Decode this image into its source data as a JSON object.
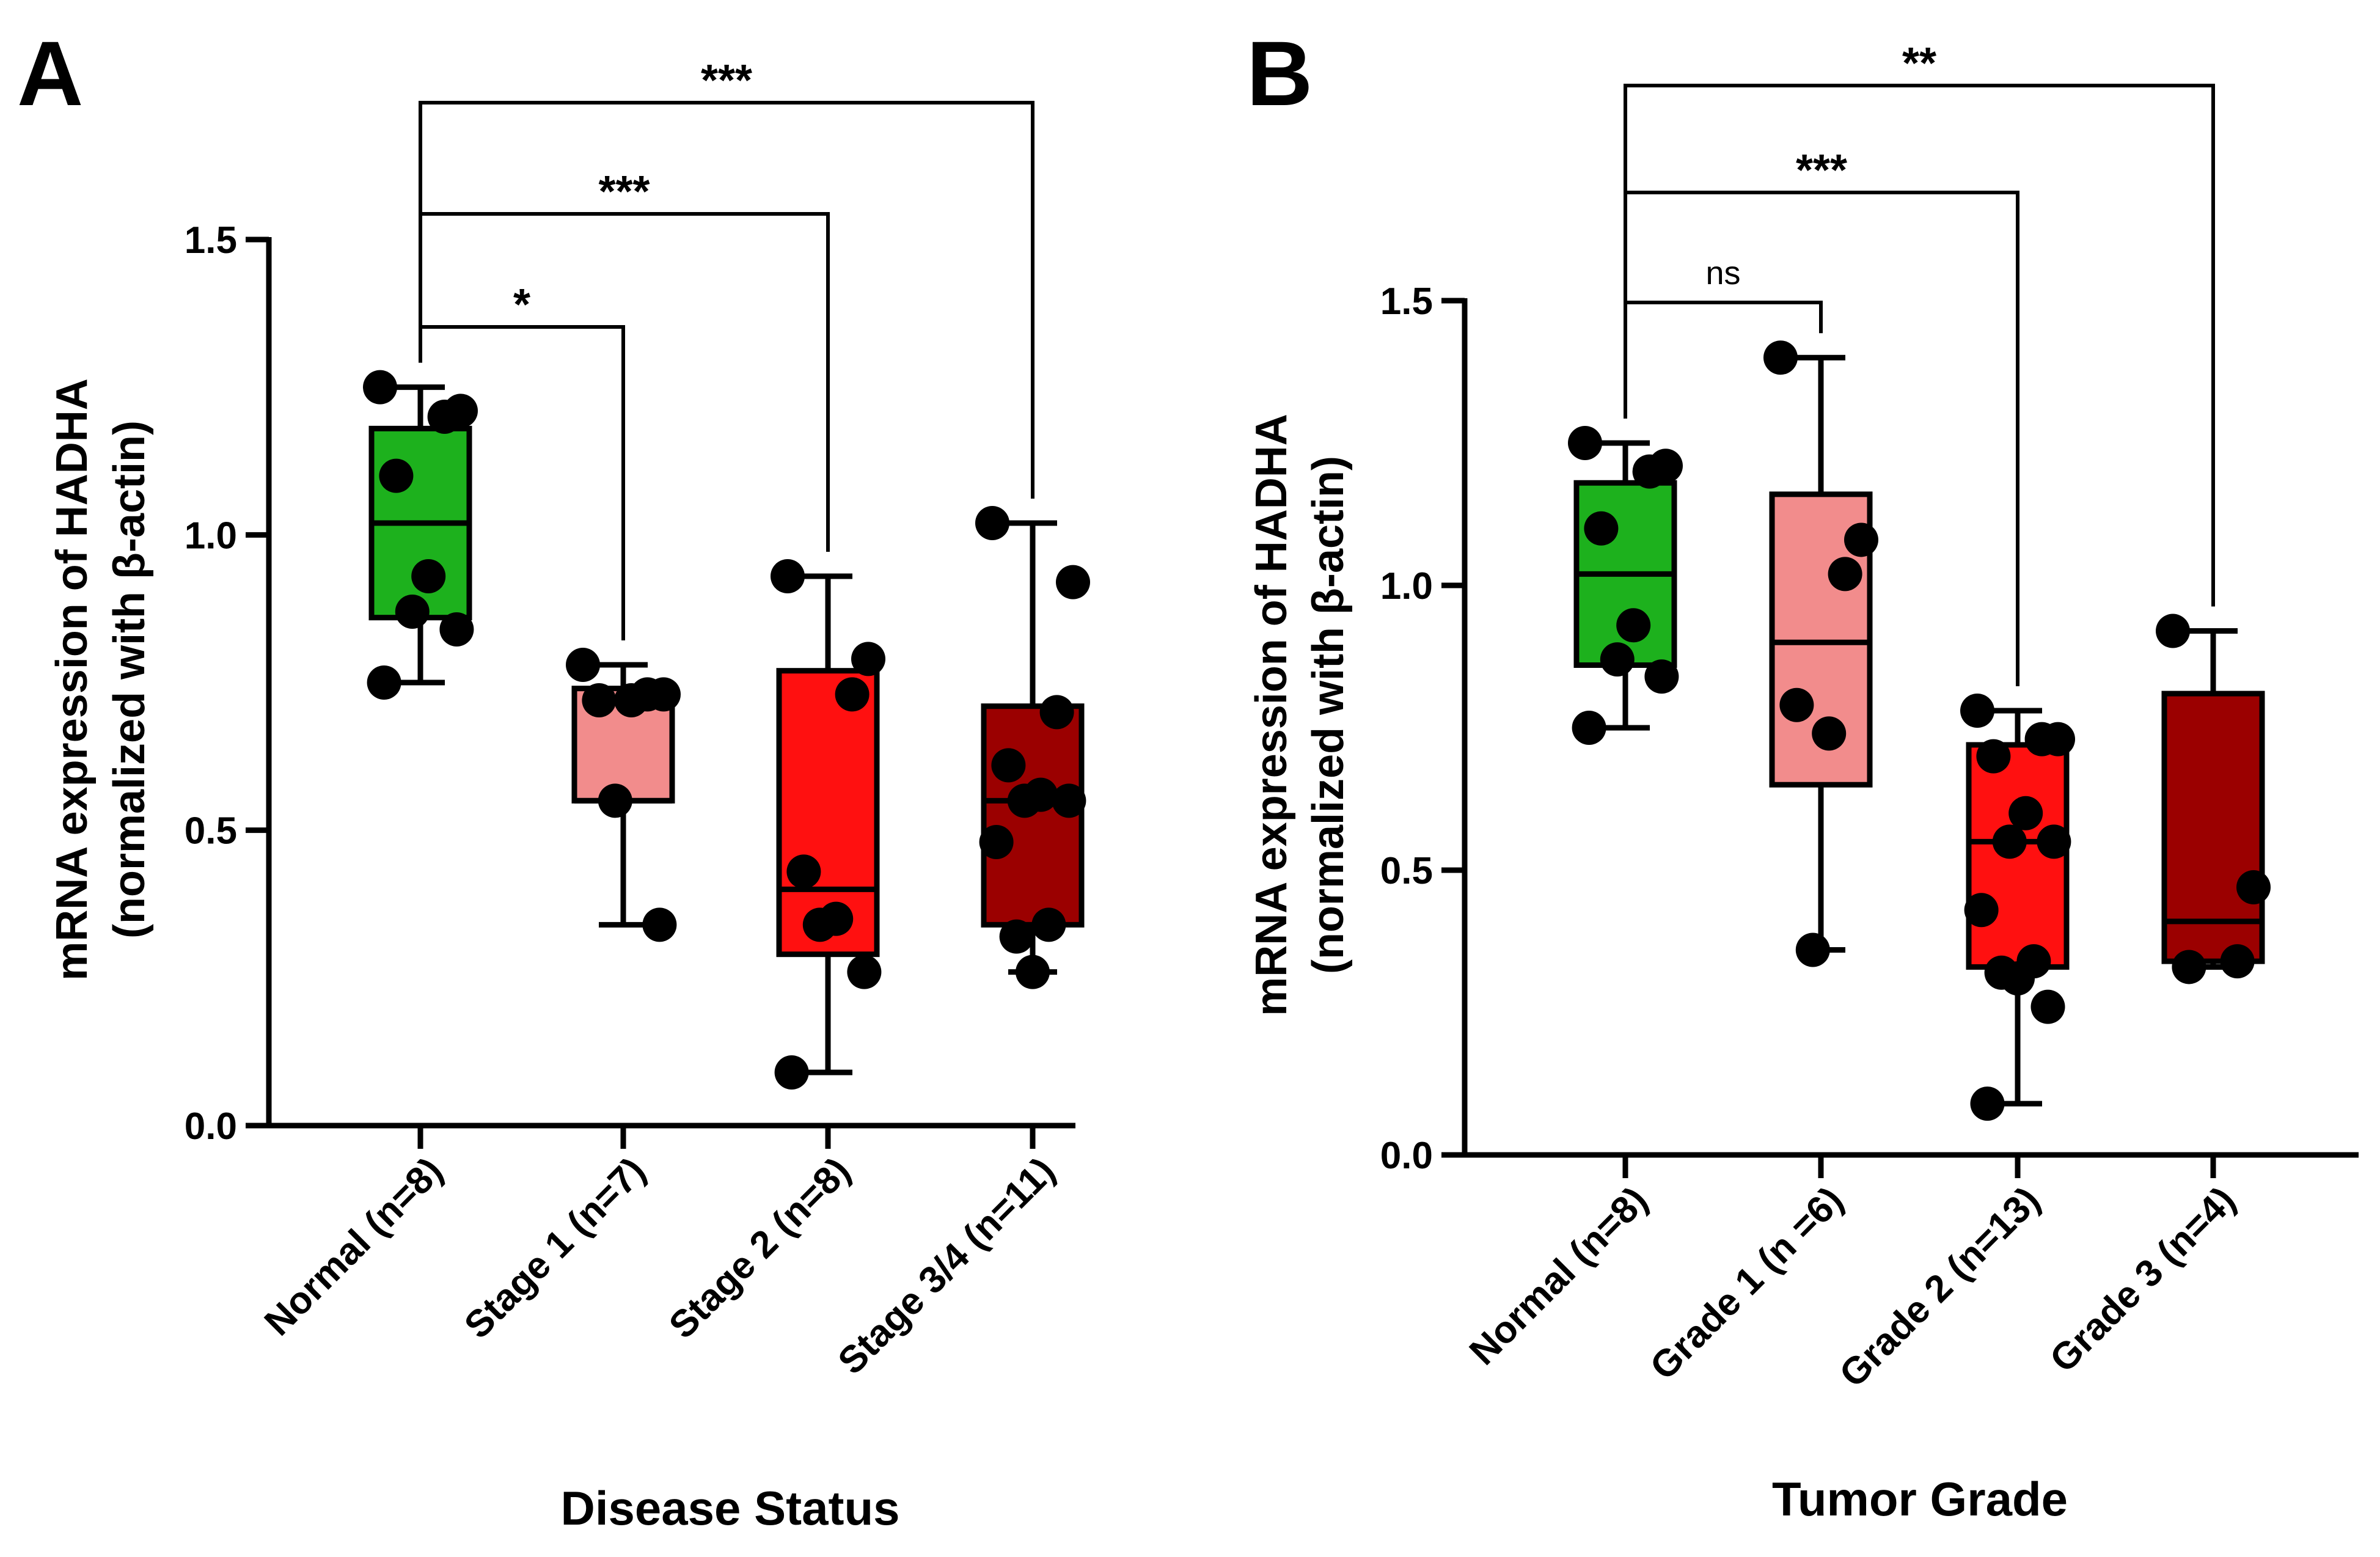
{
  "chart_data": [
    {
      "type": "box",
      "panel_label": "A",
      "title": "",
      "ylabel": [
        "mRNA expression of HADHA",
        "(normalized with β-actin)"
      ],
      "xlabel": "Disease Status",
      "ylim": [
        0,
        1.5
      ],
      "yticks": [
        "0.0",
        "0.5",
        "1.0",
        "1.5"
      ],
      "categories": [
        "Normal (n=8)",
        "Stage 1 (n=7)",
        "Stage 2 (n=8)",
        "Stage 3/4 (n=11)"
      ],
      "colors": [
        "#1db11d",
        "#f28c8c",
        "#ff1010",
        "#9b0000"
      ],
      "boxes": [
        {
          "min": 0.75,
          "q1": 0.86,
          "median": 1.02,
          "q3": 1.18,
          "max": 1.25
        },
        {
          "min": 0.34,
          "q1": 0.55,
          "median": 0.55,
          "q3": 0.74,
          "max": 0.78
        },
        {
          "min": 0.09,
          "q1": 0.29,
          "median": 0.4,
          "q3": 0.77,
          "max": 0.93
        },
        {
          "min": 0.26,
          "q1": 0.34,
          "median": 0.55,
          "q3": 0.71,
          "max": 1.02
        }
      ],
      "points": [
        [
          1.25,
          1.21,
          1.2,
          1.1,
          0.93,
          0.87,
          0.84,
          0.75
        ],
        [
          0.78,
          0.73,
          0.73,
          0.72,
          0.72,
          0.55,
          0.34
        ],
        [
          0.93,
          0.79,
          0.73,
          0.43,
          0.35,
          0.34,
          0.26,
          0.09
        ],
        [
          1.02,
          0.92,
          0.7,
          0.61,
          0.56,
          0.55,
          0.55,
          0.48,
          0.34,
          0.32,
          0.26
        ]
      ],
      "comparisons": [
        {
          "from": 0,
          "to": 1,
          "label": "*"
        },
        {
          "from": 0,
          "to": 2,
          "label": "***"
        },
        {
          "from": 0,
          "to": 3,
          "label": "***"
        }
      ]
    },
    {
      "type": "box",
      "panel_label": "B",
      "title": "",
      "ylabel": [
        "mRNA expression of HADHA",
        "(normalized with β-actin)"
      ],
      "xlabel": "Tumor Grade",
      "ylim": [
        0,
        1.5
      ],
      "yticks": [
        "0.0",
        "0.5",
        "1.0",
        "1.5"
      ],
      "categories": [
        "Normal (n=8)",
        "Grade 1 (n =6)",
        "Grade 2 (n=13)",
        "Grade 3 (n=4)"
      ],
      "colors": [
        "#1db11d",
        "#f28c8c",
        "#ff1010",
        "#9b0000"
      ],
      "boxes": [
        {
          "min": 0.75,
          "q1": 0.86,
          "median": 1.02,
          "q3": 1.18,
          "max": 1.25
        },
        {
          "min": 0.36,
          "q1": 0.65,
          "median": 0.9,
          "q3": 1.16,
          "max": 1.4
        },
        {
          "min": 0.09,
          "q1": 0.33,
          "median": 0.55,
          "q3": 0.72,
          "max": 0.78
        },
        {
          "min": 0.33,
          "q1": 0.34,
          "median": 0.41,
          "q3": 0.81,
          "max": 0.92
        }
      ],
      "points": [
        [
          1.25,
          1.21,
          1.2,
          1.1,
          0.93,
          0.87,
          0.84,
          0.75
        ],
        [
          1.4,
          1.08,
          1.02,
          0.79,
          0.74,
          0.36
        ],
        [
          0.78,
          0.73,
          0.73,
          0.7,
          0.6,
          0.55,
          0.55,
          0.43,
          0.34,
          0.32,
          0.31,
          0.26,
          0.09
        ],
        [
          0.92,
          0.47,
          0.34,
          0.33
        ]
      ],
      "comparisons": [
        {
          "from": 0,
          "to": 1,
          "label": "ns"
        },
        {
          "from": 0,
          "to": 2,
          "label": "***"
        },
        {
          "from": 0,
          "to": 3,
          "label": "**"
        }
      ]
    }
  ]
}
